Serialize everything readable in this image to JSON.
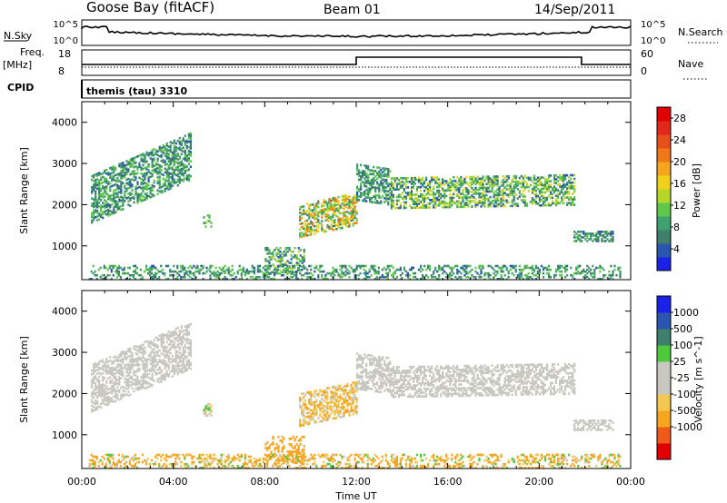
{
  "header": {
    "radar": "Goose Bay (fitACF)",
    "beam": "Beam 01",
    "date": "14/Sep/2011"
  },
  "strip_labels": {
    "nsky": "N.Sky",
    "nsky_top": "10^5",
    "nsky_bottom": "10^0",
    "nsearch": "N.Search",
    "nsearch_top": "10^5",
    "nsearch_bottom": "10^0",
    "freq": "Freq.",
    "freq_unit": "[MHz]",
    "freq_top": "18",
    "freq_bottom": "8",
    "nave": "Nave",
    "nave_top": "60",
    "nave_bottom": "0",
    "cpid": "CPID",
    "cpid_value": "themis (tau) 3310"
  },
  "colors": {
    "power_scale": [
      "#1a22e6",
      "#2a55b0",
      "#3f7f6b",
      "#3fa070",
      "#5fc84a",
      "#b6d62a",
      "#f0d21a",
      "#f5a51e",
      "#f07818",
      "#e8501a",
      "#e0281a",
      "#e00000"
    ],
    "velocity_scale": [
      "#e00000",
      "#ef5a1a",
      "#f5a51e",
      "#f2c850",
      "#c8c8c0",
      "#c8c8c0",
      "#50c83c",
      "#3f7f6b",
      "#2a55b0",
      "#1a22e6"
    ]
  },
  "chart_data": [
    {
      "type": "heatmap",
      "title": "Power",
      "ylabel": "Slant Range [km]",
      "xlabel": "Time UT",
      "x_ticks": [
        "00:00",
        "04:00",
        "08:00",
        "12:00",
        "16:00",
        "20:00",
        "00:00"
      ],
      "x_range_hours": [
        0,
        24
      ],
      "y_ticks": [
        1000,
        2000,
        3000,
        4000
      ],
      "y_range_km": [
        180,
        4500
      ],
      "colorbar": {
        "label": "Power [dB]",
        "ticks": [
          4,
          8,
          12,
          16,
          20,
          24,
          28
        ],
        "range": [
          0,
          30
        ]
      },
      "regions": [
        {
          "t": [
            0.4,
            4.8
          ],
          "r": [
            1550,
            2700
          ],
          "slope": 240,
          "v": [
            4,
            12
          ]
        },
        {
          "t": [
            5.3,
            5.7
          ],
          "r": [
            1450,
            1750
          ],
          "slope": 0,
          "v": [
            6,
            14
          ]
        },
        {
          "t": [
            8.0,
            9.7
          ],
          "r": [
            300,
            950
          ],
          "slope": 0,
          "v": [
            4,
            14
          ]
        },
        {
          "t": [
            9.5,
            12.0
          ],
          "r": [
            1200,
            2000
          ],
          "slope": 120,
          "v": [
            6,
            22
          ]
        },
        {
          "t": [
            12.0,
            13.5
          ],
          "r": [
            2100,
            3000
          ],
          "slope": -80,
          "v": [
            4,
            12
          ]
        },
        {
          "t": [
            13.5,
            21.5
          ],
          "r": [
            1900,
            2650
          ],
          "slope": 10,
          "v": [
            4,
            16
          ]
        },
        {
          "t": [
            21.5,
            23.2
          ],
          "r": [
            1100,
            1350
          ],
          "slope": 0,
          "v": [
            4,
            12
          ]
        },
        {
          "t": [
            0.3,
            23.5
          ],
          "r": [
            180,
            520
          ],
          "slope": 0,
          "v": [
            4,
            12
          ]
        }
      ]
    },
    {
      "type": "heatmap",
      "title": "Velocity",
      "ylabel": "Slant Range [km]",
      "xlabel": "Time UT",
      "x_ticks": [
        "00:00",
        "04:00",
        "08:00",
        "12:00",
        "16:00",
        "20:00",
        "00:00"
      ],
      "x_range_hours": [
        0,
        24
      ],
      "y_ticks": [
        1000,
        2000,
        3000,
        4000
      ],
      "y_range_km": [
        180,
        4500
      ],
      "colorbar": {
        "label": "Velocity [m s^-1]",
        "ticks": [
          1000,
          500,
          100,
          25,
          -25,
          -100,
          -500,
          -1000
        ]
      },
      "regions": [
        {
          "t": [
            0.4,
            4.8
          ],
          "r": [
            1550,
            2700
          ],
          "slope": 240,
          "v": [
            -25,
            25
          ]
        },
        {
          "t": [
            5.3,
            5.7
          ],
          "r": [
            1450,
            1750
          ],
          "slope": 0,
          "v": [
            -100,
            100
          ]
        },
        {
          "t": [
            8.0,
            9.7
          ],
          "r": [
            300,
            950
          ],
          "slope": 0,
          "v": [
            -500,
            -100
          ]
        },
        {
          "t": [
            9.5,
            12.0
          ],
          "r": [
            1200,
            2000
          ],
          "slope": 120,
          "v": [
            -200,
            25
          ]
        },
        {
          "t": [
            12.0,
            13.5
          ],
          "r": [
            2100,
            3000
          ],
          "slope": -80,
          "v": [
            -25,
            25
          ]
        },
        {
          "t": [
            13.5,
            21.5
          ],
          "r": [
            1900,
            2650
          ],
          "slope": 10,
          "v": [
            -25,
            25
          ]
        },
        {
          "t": [
            21.5,
            23.2
          ],
          "r": [
            1100,
            1350
          ],
          "slope": 0,
          "v": [
            -25,
            25
          ]
        },
        {
          "t": [
            0.3,
            23.5
          ],
          "r": [
            180,
            520
          ],
          "slope": 0,
          "v": [
            -400,
            100
          ]
        }
      ]
    }
  ]
}
